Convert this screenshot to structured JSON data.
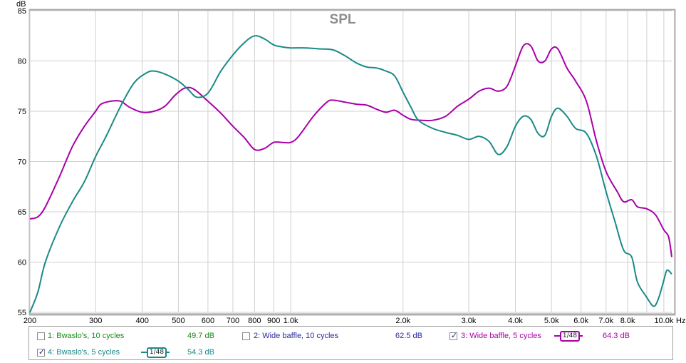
{
  "chart_data": {
    "type": "line",
    "title": "SPL",
    "ylabel": "dB",
    "xlabel": "Hz",
    "xscale": "log",
    "xlim": [
      200,
      10500
    ],
    "ylim": [
      55,
      85
    ],
    "grid": true,
    "y_ticks": [
      55,
      60,
      65,
      70,
      75,
      80,
      85
    ],
    "x_ticks": [
      {
        "v": 200,
        "label": "200"
      },
      {
        "v": 300,
        "label": "300"
      },
      {
        "v": 400,
        "label": "400"
      },
      {
        "v": 500,
        "label": "500"
      },
      {
        "v": 600,
        "label": "600"
      },
      {
        "v": 700,
        "label": "700"
      },
      {
        "v": 800,
        "label": "800"
      },
      {
        "v": 900,
        "label": "900"
      },
      {
        "v": 1000,
        "label": "1.0k"
      },
      {
        "v": 2000,
        "label": "2.0k"
      },
      {
        "v": 3000,
        "label": "3.0k"
      },
      {
        "v": 4000,
        "label": "4.0k"
      },
      {
        "v": 5000,
        "label": "5.0k"
      },
      {
        "v": 6000,
        "label": "6.0k"
      },
      {
        "v": 7000,
        "label": "7.0k"
      },
      {
        "v": 8000,
        "label": "8.0k"
      },
      {
        "v": 9000,
        "label": ""
      },
      {
        "v": 10000,
        "label": "10.0k"
      }
    ],
    "series": [
      {
        "name": "Wide baffle, 5 cycles",
        "color": "#a800a8",
        "points": [
          [
            200,
            64.3
          ],
          [
            210,
            64.5
          ],
          [
            220,
            65.5
          ],
          [
            240,
            68.5
          ],
          [
            260,
            71.5
          ],
          [
            280,
            73.5
          ],
          [
            300,
            75
          ],
          [
            310,
            75.7
          ],
          [
            330,
            76
          ],
          [
            350,
            76
          ],
          [
            370,
            75.4
          ],
          [
            400,
            74.9
          ],
          [
            430,
            75
          ],
          [
            460,
            75.5
          ],
          [
            490,
            76.6
          ],
          [
            520,
            77.3
          ],
          [
            550,
            77.2
          ],
          [
            600,
            76
          ],
          [
            650,
            74.8
          ],
          [
            700,
            73.5
          ],
          [
            750,
            72.4
          ],
          [
            800,
            71.2
          ],
          [
            850,
            71.3
          ],
          [
            900,
            71.9
          ],
          [
            950,
            71.9
          ],
          [
            1000,
            71.9
          ],
          [
            1050,
            72.5
          ],
          [
            1150,
            74.5
          ],
          [
            1250,
            75.9
          ],
          [
            1300,
            76.1
          ],
          [
            1400,
            75.9
          ],
          [
            1500,
            75.7
          ],
          [
            1600,
            75.6
          ],
          [
            1700,
            75.2
          ],
          [
            1800,
            74.9
          ],
          [
            1900,
            75.1
          ],
          [
            2000,
            74.6
          ],
          [
            2100,
            74.2
          ],
          [
            2250,
            74.1
          ],
          [
            2400,
            74.1
          ],
          [
            2600,
            74.5
          ],
          [
            2800,
            75.5
          ],
          [
            3000,
            76.2
          ],
          [
            3200,
            77
          ],
          [
            3400,
            77.3
          ],
          [
            3600,
            77
          ],
          [
            3800,
            77.5
          ],
          [
            4000,
            79.5
          ],
          [
            4200,
            81.5
          ],
          [
            4400,
            81.5
          ],
          [
            4600,
            80
          ],
          [
            4800,
            80
          ],
          [
            5000,
            81.2
          ],
          [
            5200,
            81.2
          ],
          [
            5500,
            79.3
          ],
          [
            5800,
            78
          ],
          [
            6200,
            76
          ],
          [
            6600,
            72
          ],
          [
            7000,
            69
          ],
          [
            7500,
            67
          ],
          [
            7800,
            66
          ],
          [
            8200,
            66.2
          ],
          [
            8500,
            65.5
          ],
          [
            9000,
            65.3
          ],
          [
            9500,
            64.7
          ],
          [
            10000,
            63.2
          ],
          [
            10300,
            62.5
          ],
          [
            10500,
            60.5
          ]
        ]
      },
      {
        "name": "Bwaslo's, 5 cycles",
        "color": "#1a8a86",
        "points": [
          [
            200,
            55
          ],
          [
            210,
            57
          ],
          [
            220,
            60
          ],
          [
            240,
            63.5
          ],
          [
            260,
            66
          ],
          [
            280,
            68
          ],
          [
            300,
            70.5
          ],
          [
            320,
            72.5
          ],
          [
            350,
            75.5
          ],
          [
            380,
            77.8
          ],
          [
            410,
            78.8
          ],
          [
            430,
            79
          ],
          [
            460,
            78.7
          ],
          [
            500,
            78
          ],
          [
            530,
            77.2
          ],
          [
            560,
            76.4
          ],
          [
            600,
            76.8
          ],
          [
            650,
            79
          ],
          [
            700,
            80.6
          ],
          [
            750,
            81.8
          ],
          [
            800,
            82.5
          ],
          [
            850,
            82.2
          ],
          [
            900,
            81.6
          ],
          [
            950,
            81.4
          ],
          [
            1000,
            81.3
          ],
          [
            1100,
            81.3
          ],
          [
            1200,
            81.2
          ],
          [
            1300,
            81.1
          ],
          [
            1400,
            80.5
          ],
          [
            1500,
            79.8
          ],
          [
            1600,
            79.4
          ],
          [
            1700,
            79.3
          ],
          [
            1800,
            79
          ],
          [
            1900,
            78.5
          ],
          [
            2000,
            76.9
          ],
          [
            2100,
            75.4
          ],
          [
            2200,
            74.1
          ],
          [
            2400,
            73.3
          ],
          [
            2600,
            72.9
          ],
          [
            2800,
            72.6
          ],
          [
            3000,
            72.2
          ],
          [
            3200,
            72.5
          ],
          [
            3400,
            72
          ],
          [
            3600,
            70.7
          ],
          [
            3800,
            71.5
          ],
          [
            4000,
            73.5
          ],
          [
            4200,
            74.5
          ],
          [
            4400,
            74.2
          ],
          [
            4600,
            72.8
          ],
          [
            4800,
            72.6
          ],
          [
            5000,
            74.5
          ],
          [
            5200,
            75.3
          ],
          [
            5500,
            74.5
          ],
          [
            5800,
            73.3
          ],
          [
            6200,
            72.8
          ],
          [
            6600,
            70.5
          ],
          [
            7000,
            67
          ],
          [
            7400,
            64
          ],
          [
            7800,
            61.2
          ],
          [
            8200,
            60.5
          ],
          [
            8500,
            58
          ],
          [
            9000,
            56.5
          ],
          [
            9400,
            55.6
          ],
          [
            9700,
            56.5
          ],
          [
            10000,
            58.2
          ],
          [
            10200,
            59.2
          ],
          [
            10500,
            58.8
          ]
        ]
      }
    ]
  },
  "legend": {
    "items": [
      {
        "label": "1: Bwaslo's, 10 cycles",
        "value": "49.7 dB",
        "checked": false,
        "color": "#1a8a1a"
      },
      {
        "label": "2: Wide baffle, 10 cycles",
        "value": "62.5 dB",
        "checked": false,
        "color": "#2a2aa0"
      },
      {
        "label": "3: Wide baffle, 5 cycles",
        "value": "64.3 dB",
        "checked": true,
        "color": "#a800a8",
        "smoothing": "1/48"
      },
      {
        "label": "4: Bwaslo's, 5 cycles",
        "value": "54.3 dB",
        "checked": true,
        "color": "#1a8a86",
        "smoothing": "1/48"
      }
    ]
  }
}
